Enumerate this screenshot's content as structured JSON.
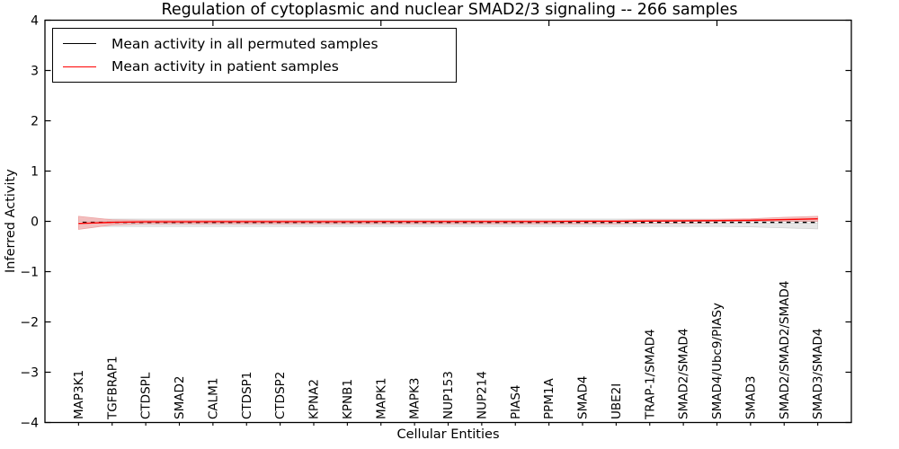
{
  "figure": {
    "title": "Regulation of cytoplasmic and nuclear SMAD2/3 signaling -- 266 samples",
    "xlabel": "Cellular Entities",
    "ylabel": "Inferred Activity"
  },
  "legend": {
    "position": "upper left",
    "items": [
      {
        "label": "Mean activity in all permuted samples",
        "color": "#000000"
      },
      {
        "label": "Mean activity in patient samples",
        "color": "#ff0000"
      }
    ]
  },
  "chart_data": {
    "type": "line",
    "title": "Regulation of cytoplasmic and nuclear SMAD2/3 signaling -- 266 samples",
    "xlabel": "Cellular Entities",
    "ylabel": "Inferred Activity",
    "grid": false,
    "ylim": [
      -4,
      4
    ],
    "yticks": [
      -4,
      -3,
      -2,
      -1,
      0,
      1,
      2,
      3,
      4
    ],
    "xlim": [
      0,
      24
    ],
    "x_major_ticks": [
      5,
      10,
      15,
      20
    ],
    "categories": [
      "MAP3K1",
      "TGFBRAP1",
      "CTDSPL",
      "SMAD2",
      "CALM1",
      "CTDSP1",
      "CTDSP2",
      "KPNA2",
      "KPNB1",
      "MAPK1",
      "MAPK3",
      "NUP153",
      "NUP214",
      "PIAS4",
      "PPM1A",
      "SMAD4",
      "UBE2I",
      "TRAP-1/SMAD4",
      "SMAD2/SMAD4",
      "SMAD4/Ubc9/PIASy",
      "SMAD3",
      "SMAD2/SMAD2/SMAD4",
      "SMAD3/SMAD4"
    ],
    "category_positions": [
      1,
      2,
      3,
      4,
      5,
      6,
      7,
      8,
      9,
      10,
      11,
      12,
      13,
      14,
      15,
      16,
      17,
      18,
      19,
      20,
      21,
      22,
      23
    ],
    "series": [
      {
        "name": "Mean activity in all permuted samples",
        "color": "#000000",
        "overlay_dash_color": "#ffffff",
        "values": [
          -0.02,
          -0.02,
          -0.02,
          -0.02,
          -0.02,
          -0.02,
          -0.02,
          -0.02,
          -0.02,
          -0.02,
          -0.02,
          -0.02,
          -0.02,
          -0.02,
          -0.02,
          -0.02,
          -0.02,
          -0.02,
          -0.02,
          -0.02,
          -0.02,
          -0.02,
          -0.02
        ]
      },
      {
        "name": "Mean activity in patient samples",
        "color": "#ff0000",
        "values": [
          -0.04,
          -0.02,
          -0.01,
          -0.01,
          -0.008,
          -0.008,
          -0.008,
          -0.008,
          -0.008,
          -0.005,
          -0.005,
          -0.005,
          -0.005,
          -0.005,
          -0.005,
          0,
          0,
          0.005,
          0.01,
          0.015,
          0.02,
          0.035,
          0.05
        ]
      }
    ],
    "bands": [
      {
        "name": "permuted-samples-std-band",
        "fill": "#e4e4e4",
        "edge": "#d2d2d2",
        "upper": [
          0.045,
          0.045,
          0.045,
          0.045,
          0.045,
          0.045,
          0.045,
          0.045,
          0.045,
          0.045,
          0.045,
          0.045,
          0.045,
          0.045,
          0.045,
          0.045,
          0.045,
          0.045,
          0.045,
          0.045,
          0.045,
          0.04,
          0.04
        ],
        "lower": [
          -0.1,
          -0.1,
          -0.1,
          -0.1,
          -0.1,
          -0.1,
          -0.1,
          -0.1,
          -0.1,
          -0.1,
          -0.1,
          -0.1,
          -0.1,
          -0.1,
          -0.1,
          -0.1,
          -0.1,
          -0.1,
          -0.1,
          -0.1,
          -0.11,
          -0.13,
          -0.15
        ]
      },
      {
        "name": "patient-samples-std-band",
        "fill": "#f3b9b9",
        "edge": "#eda2a2",
        "upper": [
          0.1,
          0.03,
          0.02,
          0.02,
          0.02,
          0.02,
          0.02,
          0.02,
          0.02,
          0.02,
          0.02,
          0.02,
          0.02,
          0.02,
          0.02,
          0.02,
          0.02,
          0.03,
          0.03,
          0.04,
          0.05,
          0.08,
          0.1
        ],
        "lower": [
          -0.16,
          -0.07,
          -0.05,
          -0.05,
          -0.05,
          -0.05,
          -0.05,
          -0.05,
          -0.05,
          -0.05,
          -0.05,
          -0.05,
          -0.05,
          -0.05,
          -0.05,
          -0.05,
          -0.05,
          -0.04,
          -0.04,
          -0.03,
          -0.02,
          -0.01,
          0.0
        ]
      }
    ]
  }
}
